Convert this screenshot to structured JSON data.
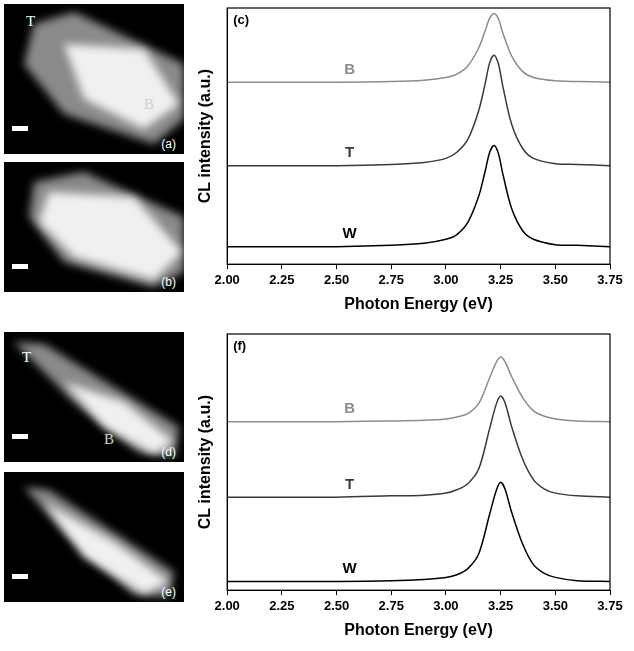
{
  "chart_data": [
    {
      "type": "line",
      "panel": "(c)",
      "x_label": "Photon Energy (eV)",
      "y_label": "CL intensity (a.u.)",
      "x": [
        2.0,
        2.25,
        2.5,
        2.75,
        2.9,
        3.0,
        3.05,
        3.1,
        3.15,
        3.18,
        3.2,
        3.22,
        3.24,
        3.26,
        3.3,
        3.35,
        3.4,
        3.5,
        3.6,
        3.75
      ],
      "xlim": [
        2,
        3.75
      ],
      "xticks": [
        {
          "value": 2,
          "label": "2.00"
        },
        {
          "value": 2.25,
          "label": "2.25"
        },
        {
          "value": 2.5,
          "label": "2.50"
        },
        {
          "value": 2.75,
          "label": "2.75"
        },
        {
          "value": 3,
          "label": "3.00"
        },
        {
          "value": 3.25,
          "label": "3.25"
        },
        {
          "value": 3.5,
          "label": "3.50"
        },
        {
          "value": 3.75,
          "label": "3.75"
        }
      ],
      "ylim": [
        0,
        3.8
      ],
      "tick_labels": "x",
      "grid": false,
      "series": [
        {
          "name": "B",
          "color": "#8c8c8c",
          "values": [
            2.7,
            2.7,
            2.7,
            2.71,
            2.73,
            2.77,
            2.82,
            2.94,
            3.21,
            3.47,
            3.65,
            3.72,
            3.64,
            3.43,
            3.09,
            2.86,
            2.77,
            2.72,
            2.71,
            2.7
          ]
        },
        {
          "name": "T",
          "color": "#3a3a3a",
          "values": [
            1.46,
            1.46,
            1.46,
            1.48,
            1.51,
            1.57,
            1.66,
            1.85,
            2.28,
            2.69,
            2.99,
            3.1,
            2.97,
            2.64,
            2.08,
            1.72,
            1.57,
            1.49,
            1.48,
            1.46
          ]
        },
        {
          "name": "W",
          "color": "#000000",
          "values": [
            0.26,
            0.26,
            0.26,
            0.28,
            0.31,
            0.37,
            0.44,
            0.62,
            1.01,
            1.39,
            1.66,
            1.76,
            1.64,
            1.34,
            0.83,
            0.5,
            0.37,
            0.29,
            0.28,
            0.26
          ]
        }
      ]
    },
    {
      "type": "line",
      "panel": "(f)",
      "x_label": "Photon Energy (eV)",
      "y_label": "CL intensity (a.u.)",
      "x": [
        2.0,
        2.25,
        2.5,
        2.75,
        2.9,
        3.0,
        3.05,
        3.1,
        3.15,
        3.2,
        3.23,
        3.25,
        3.27,
        3.3,
        3.35,
        3.4,
        3.45,
        3.5,
        3.6,
        3.75
      ],
      "xlim": [
        2,
        3.75
      ],
      "xticks": [
        {
          "value": 2,
          "label": "2.00"
        },
        {
          "value": 2.25,
          "label": "2.25"
        },
        {
          "value": 2.5,
          "label": "2.50"
        },
        {
          "value": 2.75,
          "label": "2.75"
        },
        {
          "value": 3,
          "label": "3.00"
        },
        {
          "value": 3.25,
          "label": "3.25"
        },
        {
          "value": 3.5,
          "label": "3.50"
        },
        {
          "value": 3.75,
          "label": "3.75"
        }
      ],
      "ylim": [
        0,
        3.8
      ],
      "tick_labels": "x",
      "grid": false,
      "series": [
        {
          "name": "B",
          "color": "#8c8c8c",
          "values": [
            2.5,
            2.5,
            2.5,
            2.51,
            2.52,
            2.54,
            2.57,
            2.62,
            2.77,
            3.15,
            3.38,
            3.46,
            3.39,
            3.17,
            2.86,
            2.66,
            2.58,
            2.54,
            2.51,
            2.5
          ]
        },
        {
          "name": "T",
          "color": "#3a3a3a",
          "values": [
            1.38,
            1.38,
            1.38,
            1.4,
            1.41,
            1.44,
            1.49,
            1.58,
            1.8,
            2.4,
            2.76,
            2.88,
            2.78,
            2.43,
            1.95,
            1.64,
            1.5,
            1.44,
            1.4,
            1.38
          ]
        },
        {
          "name": "W",
          "color": "#000000",
          "values": [
            0.13,
            0.13,
            0.13,
            0.14,
            0.16,
            0.19,
            0.23,
            0.32,
            0.54,
            1.13,
            1.48,
            1.6,
            1.5,
            1.16,
            0.69,
            0.38,
            0.25,
            0.19,
            0.14,
            0.13
          ]
        }
      ]
    }
  ],
  "images": [
    {
      "panel": "(a)",
      "labels": [
        "T",
        "B"
      ]
    },
    {
      "panel": "(b)",
      "labels": []
    },
    {
      "panel": "(d)",
      "labels": [
        "T",
        "B"
      ]
    },
    {
      "panel": "(e)",
      "labels": []
    }
  ]
}
